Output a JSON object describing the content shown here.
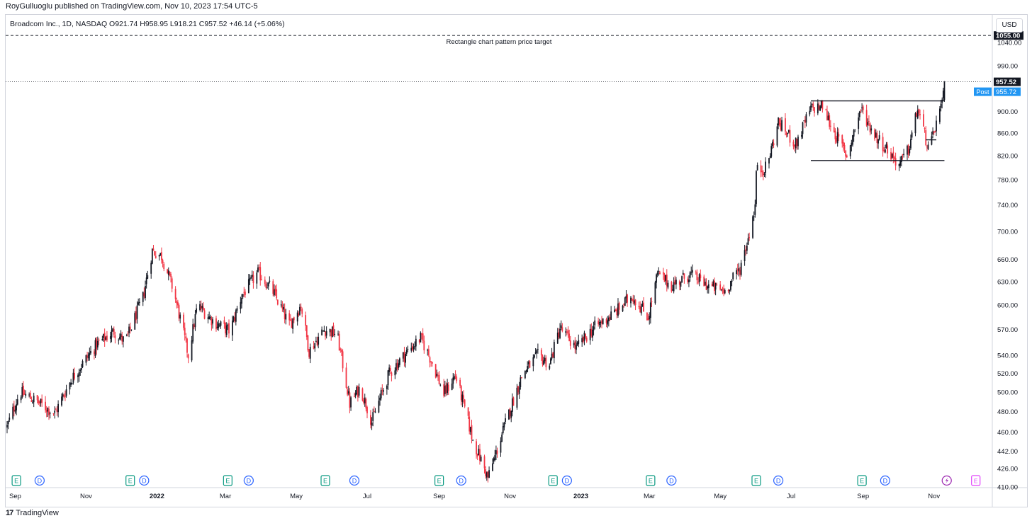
{
  "header": {
    "attribution": "RoyGulluoglu published on TradingView.com, Nov 10, 2023 17:54 UTC-5",
    "legend": "Broadcom Inc., 1D, NASDAQ  O921.74  H958.95  L918.21  C957.52  +46.14 (+5.06%)",
    "currency_button": "USD"
  },
  "footer": {
    "brand": "TradingView",
    "logo_glyph": "17"
  },
  "chart_data": {
    "type": "candlestick",
    "symbol": "Broadcom Inc.",
    "interval": "1D",
    "exchange": "NASDAQ",
    "ohlc_last": {
      "open": 921.74,
      "high": 958.95,
      "low": 918.21,
      "close": 957.52,
      "change": "+46.14",
      "change_pct": "+5.06%"
    },
    "y_axis": {
      "scale": "log",
      "range": [
        410,
        1100
      ],
      "ticks": [
        "1040.00",
        "990.00",
        "900.00",
        "860.00",
        "820.00",
        "780.00",
        "740.00",
        "700.00",
        "660.00",
        "630.00",
        "600.00",
        "570.00",
        "540.00",
        "520.00",
        "500.00",
        "480.00",
        "460.00",
        "442.00",
        "426.00",
        "410.00"
      ]
    },
    "x_axis": {
      "range": [
        "2021-08-25",
        "2023-12-20"
      ],
      "ticks": [
        {
          "label": "Sep",
          "date": "2021-09-01",
          "bold": false
        },
        {
          "label": "Nov",
          "date": "2021-11-01",
          "bold": false
        },
        {
          "label": "2022",
          "date": "2022-01-01",
          "bold": true
        },
        {
          "label": "Mar",
          "date": "2022-03-01",
          "bold": false
        },
        {
          "label": "May",
          "date": "2022-05-01",
          "bold": false
        },
        {
          "label": "Jul",
          "date": "2022-07-01",
          "bold": false
        },
        {
          "label": "Sep",
          "date": "2022-09-01",
          "bold": false
        },
        {
          "label": "Nov",
          "date": "2022-11-01",
          "bold": false
        },
        {
          "label": "2023",
          "date": "2023-01-01",
          "bold": true
        },
        {
          "label": "Mar",
          "date": "2023-03-01",
          "bold": false
        },
        {
          "label": "May",
          "date": "2023-05-01",
          "bold": false
        },
        {
          "label": "Jul",
          "date": "2023-07-01",
          "bold": false
        },
        {
          "label": "Sep",
          "date": "2023-09-01",
          "bold": false
        },
        {
          "label": "Nov",
          "date": "2023-11-01",
          "bold": false
        }
      ]
    },
    "price_path": [
      [
        "2021-08-25",
        465
      ],
      [
        "2021-09-05",
        500
      ],
      [
        "2021-09-20",
        490
      ],
      [
        "2021-10-05",
        478
      ],
      [
        "2021-10-20",
        515
      ],
      [
        "2021-11-10",
        552
      ],
      [
        "2021-11-25",
        568
      ],
      [
        "2021-12-05",
        555
      ],
      [
        "2021-12-20",
        610
      ],
      [
        "2021-12-28",
        672
      ],
      [
        "2022-01-05",
        665
      ],
      [
        "2022-01-15",
        620
      ],
      [
        "2022-01-28",
        540
      ],
      [
        "2022-02-05",
        600
      ],
      [
        "2022-02-20",
        578
      ],
      [
        "2022-03-05",
        568
      ],
      [
        "2022-03-15",
        612
      ],
      [
        "2022-03-29",
        642
      ],
      [
        "2022-04-10",
        620
      ],
      [
        "2022-04-25",
        575
      ],
      [
        "2022-05-05",
        600
      ],
      [
        "2022-05-12",
        545
      ],
      [
        "2022-05-25",
        570
      ],
      [
        "2022-06-05",
        565
      ],
      [
        "2022-06-16",
        488
      ],
      [
        "2022-06-25",
        505
      ],
      [
        "2022-07-05",
        470
      ],
      [
        "2022-07-20",
        520
      ],
      [
        "2022-08-05",
        545
      ],
      [
        "2022-08-16",
        560
      ],
      [
        "2022-08-25",
        535
      ],
      [
        "2022-09-05",
        498
      ],
      [
        "2022-09-15",
        518
      ],
      [
        "2022-09-30",
        452
      ],
      [
        "2022-10-13",
        418
      ],
      [
        "2022-10-20",
        440
      ],
      [
        "2022-10-28",
        468
      ],
      [
        "2022-11-12",
        520
      ],
      [
        "2022-11-25",
        540
      ],
      [
        "2022-12-05",
        530
      ],
      [
        "2022-12-14",
        572
      ],
      [
        "2022-12-28",
        548
      ],
      [
        "2023-01-12",
        572
      ],
      [
        "2023-01-30",
        590
      ],
      [
        "2023-02-14",
        612
      ],
      [
        "2023-02-28",
        585
      ],
      [
        "2023-03-08",
        640
      ],
      [
        "2023-03-20",
        625
      ],
      [
        "2023-04-05",
        640
      ],
      [
        "2023-04-20",
        625
      ],
      [
        "2023-05-05",
        618
      ],
      [
        "2023-05-18",
        648
      ],
      [
        "2023-05-25",
        690
      ],
      [
        "2023-05-31",
        738
      ],
      [
        "2023-06-01",
        795
      ],
      [
        "2023-06-10",
        800
      ],
      [
        "2023-06-20",
        880
      ],
      [
        "2023-07-05",
        840
      ],
      [
        "2023-07-18",
        905
      ],
      [
        "2023-07-28",
        910
      ],
      [
        "2023-08-05",
        870
      ],
      [
        "2023-08-18",
        820
      ],
      [
        "2023-08-30",
        905
      ],
      [
        "2023-09-10",
        860
      ],
      [
        "2023-09-22",
        830
      ],
      [
        "2023-10-02",
        805
      ],
      [
        "2023-10-10",
        830
      ],
      [
        "2023-10-18",
        905
      ],
      [
        "2023-10-28",
        825
      ],
      [
        "2023-11-03",
        880
      ],
      [
        "2023-11-08",
        911
      ],
      [
        "2023-11-10",
        957.52
      ]
    ],
    "annotations": {
      "price_target": {
        "value": 1055.0,
        "label": "1055.00",
        "text": "Rectangle chart pattern price target"
      },
      "rectangle": {
        "start": "2023-07-18",
        "end": "2023-11-10",
        "top": 920,
        "bottom": 812
      },
      "mini_line": {
        "start": "2023-10-25",
        "end": "2023-11-03",
        "value": 848
      },
      "last_price": {
        "value": 957.52,
        "label": "957.52"
      },
      "post_market": {
        "value": 955.72,
        "label": "955.72",
        "tag": "Post"
      }
    },
    "events": [
      {
        "type": "E",
        "date": "2021-09-02"
      },
      {
        "type": "D",
        "date": "2021-09-22"
      },
      {
        "type": "E",
        "date": "2021-12-09"
      },
      {
        "type": "D",
        "date": "2021-12-21"
      },
      {
        "type": "E",
        "date": "2022-03-03"
      },
      {
        "type": "D",
        "date": "2022-03-21"
      },
      {
        "type": "E",
        "date": "2022-05-26"
      },
      {
        "type": "D",
        "date": "2022-06-20"
      },
      {
        "type": "E",
        "date": "2022-09-01"
      },
      {
        "type": "D",
        "date": "2022-09-20"
      },
      {
        "type": "E",
        "date": "2022-12-08"
      },
      {
        "type": "D",
        "date": "2022-12-20"
      },
      {
        "type": "E",
        "date": "2023-03-02"
      },
      {
        "type": "D",
        "date": "2023-03-20"
      },
      {
        "type": "E",
        "date": "2023-06-01"
      },
      {
        "type": "D",
        "date": "2023-06-20"
      },
      {
        "type": "E",
        "date": "2023-08-31"
      },
      {
        "type": "D",
        "date": "2023-09-20"
      },
      {
        "type": "S",
        "date": "2023-11-12"
      },
      {
        "type": "M",
        "date": "2023-12-07"
      }
    ],
    "colors": {
      "up": "#131722",
      "down": "#f23645",
      "post": "#2196f3",
      "event_e": "#089981",
      "event_d": "#2962ff",
      "event_s": "#9c27b0",
      "event_m": "#e040fb"
    }
  }
}
